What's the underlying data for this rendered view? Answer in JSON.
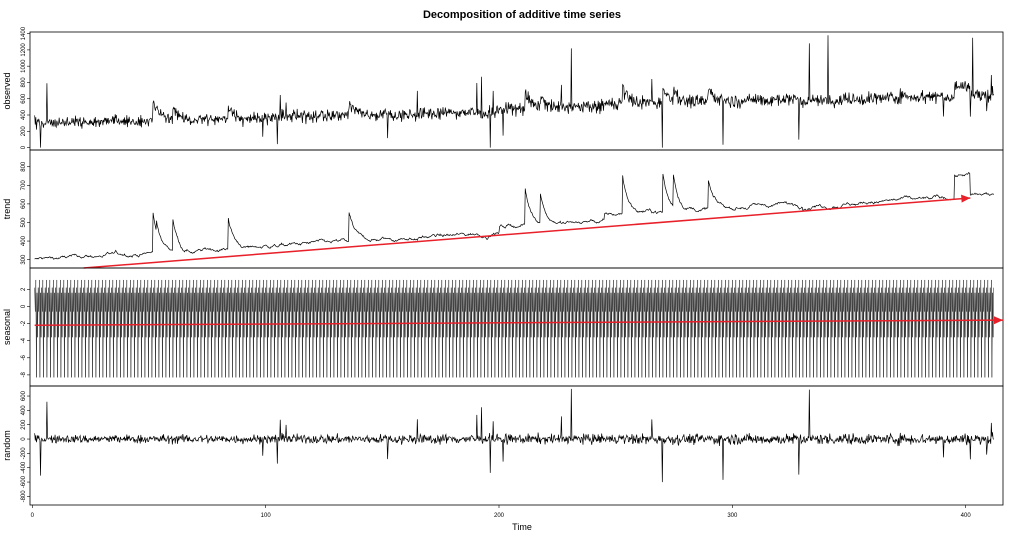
{
  "chart_data": {
    "type": "line",
    "title": "Decomposition of additive time series",
    "xlabel": "Time",
    "xlim": [
      -1,
      416
    ],
    "xticks": [
      "0",
      "100",
      "200",
      "300",
      "400"
    ],
    "time_range": [
      1,
      412
    ],
    "colors": {
      "line": "#000000",
      "arrow": "#e8202a",
      "frame": "#000000"
    },
    "panels": [
      {
        "name": "observed",
        "ylabel": "observed",
        "ylim": [
          -30,
          1420
        ],
        "yticks": [
          "0",
          "200",
          "400",
          "600",
          "800",
          "1000",
          "1200",
          "1400"
        ],
        "summary": {
          "start_level": 300,
          "end_level": 590,
          "min": 0,
          "max": 1380
        }
      },
      {
        "name": "trend",
        "ylabel": "trend",
        "ylim": [
          255,
          890
        ],
        "yticks": [
          "300",
          "400",
          "500",
          "600",
          "700",
          "800"
        ],
        "summary": {
          "start_level": 310,
          "end_level": 620,
          "min": 280,
          "max": 850
        },
        "arrow": {
          "from": [
            22,
            255
          ],
          "to": [
            402,
            632
          ]
        }
      },
      {
        "name": "seasonal",
        "ylabel": "seasonal",
        "ylim": [
          -9.3,
          4.5
        ],
        "yticks": [
          "-8",
          "-6",
          "-4",
          "-2",
          "0",
          "2"
        ],
        "summary": {
          "min": -8.5,
          "max": 3.3
        },
        "arrow": {
          "from": [
            1,
            -2.2
          ],
          "to": [
            416,
            -1.6
          ]
        }
      },
      {
        "name": "random",
        "ylabel": "random",
        "ylim": [
          -920,
          740
        ],
        "yticks": [
          "-800",
          "-600",
          "-400",
          "-200",
          "0",
          "200",
          "400",
          "600"
        ],
        "summary": {
          "min": -600,
          "max": 720
        }
      }
    ]
  }
}
